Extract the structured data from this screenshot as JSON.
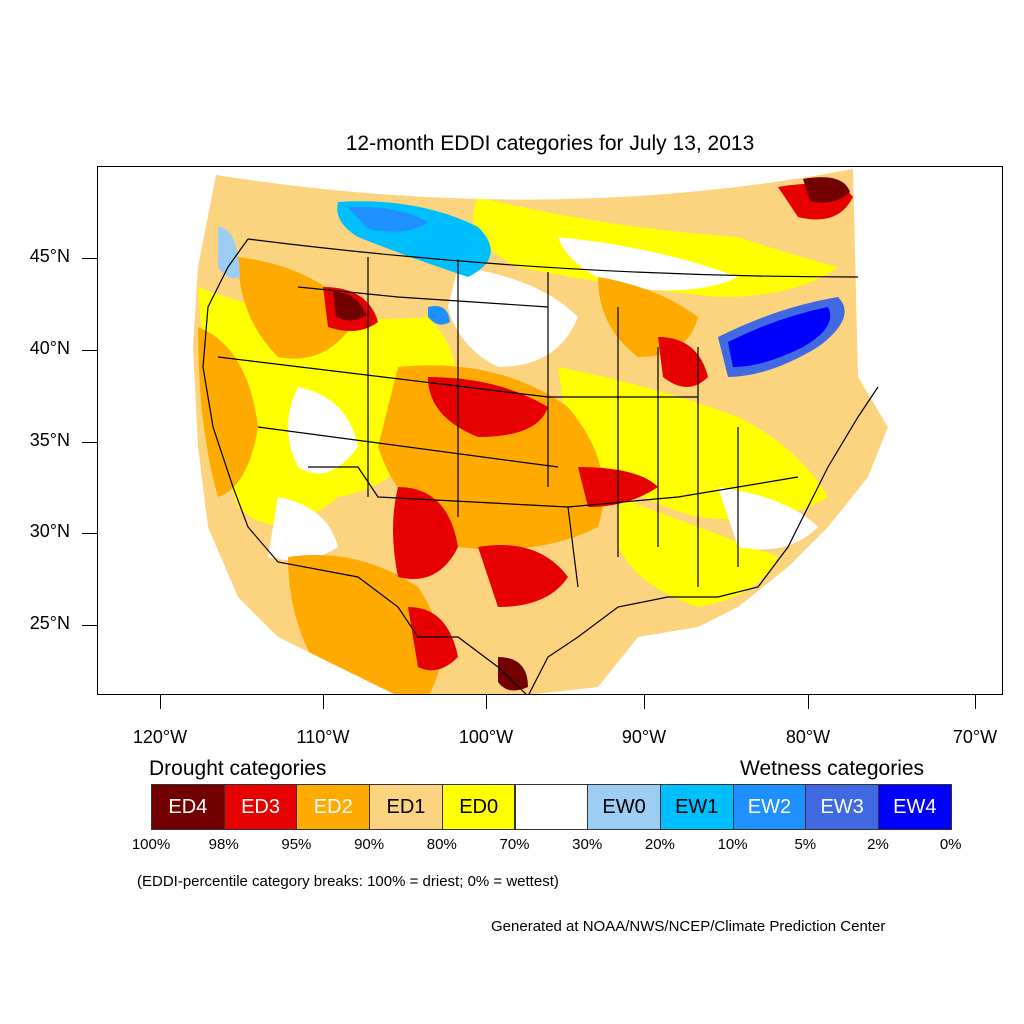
{
  "title": "12-month EDDI categories for July 13, 2013",
  "lat_labels": [
    "45°N",
    "40°N",
    "35°N",
    "30°N",
    "25°N"
  ],
  "lon_labels": [
    "120°W",
    "110°W",
    "100°W",
    "90°W",
    "80°W",
    "70°W"
  ],
  "legend": {
    "drought_header": "Drought categories",
    "wetness_header": "Wetness categories",
    "categories": [
      {
        "label": "ED4",
        "color": "#730000",
        "text_color": "#ffffff"
      },
      {
        "label": "ED3",
        "color": "#e60000",
        "text_color": "#ffffff"
      },
      {
        "label": "ED2",
        "color": "#ffaa00",
        "text_color": "#ffffff"
      },
      {
        "label": "ED1",
        "color": "#fcd37f",
        "text_color": "#000000"
      },
      {
        "label": "ED0",
        "color": "#ffff00",
        "text_color": "#000000"
      },
      {
        "label": "",
        "color": "#ffffff",
        "text_color": "#000000"
      },
      {
        "label": "EW0",
        "color": "#9dcdf2",
        "text_color": "#000000"
      },
      {
        "label": "EW1",
        "color": "#00bfff",
        "text_color": "#000000"
      },
      {
        "label": "EW2",
        "color": "#1e90ff",
        "text_color": "#ffffff"
      },
      {
        "label": "EW3",
        "color": "#4169e1",
        "text_color": "#ffffff"
      },
      {
        "label": "EW4",
        "color": "#0000ff",
        "text_color": "#ffffff"
      }
    ],
    "percentiles": [
      "100%",
      "98%",
      "95%",
      "90%",
      "80%",
      "70%",
      "30%",
      "20%",
      "10%",
      "5%",
      "2%",
      "0%"
    ]
  },
  "note": "(EDDI-percentile category breaks: 100% = driest; 0% = wettest)",
  "credit": "Generated at NOAA/NWS/NCEP/Climate Prediction Center"
}
